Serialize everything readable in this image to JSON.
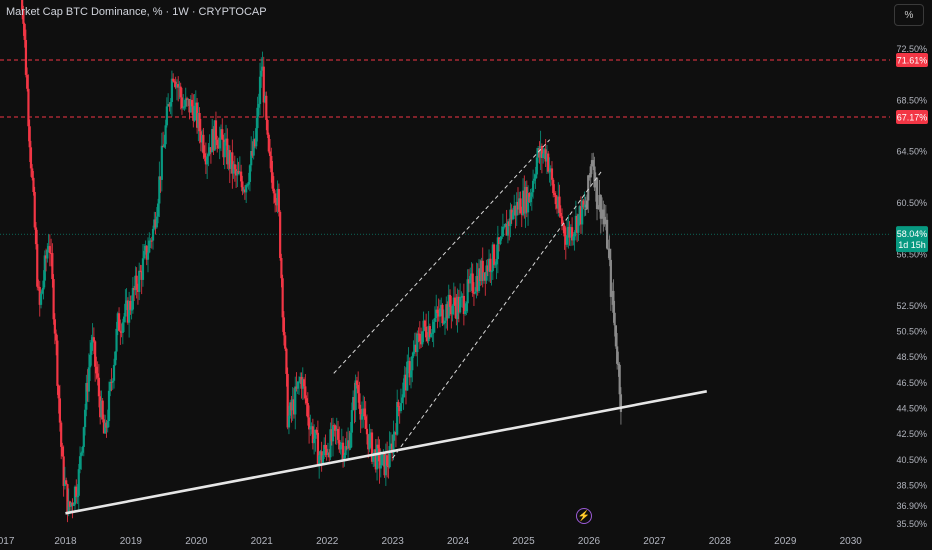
{
  "header": {
    "title": "Market Cap BTC Dominance, % · 1W · CRYPTOCAP"
  },
  "scale_button": {
    "label": "%"
  },
  "icons": {
    "alert": "lightning-bolt-icon"
  },
  "chart_data": {
    "type": "candlestick",
    "yaxis": {
      "range": [
        35.0,
        75.5
      ],
      "tick_labels": [
        "72.50%",
        "68.50%",
        "64.50%",
        "60.50%",
        "56.50%",
        "52.50%",
        "50.50%",
        "48.50%",
        "46.50%",
        "44.50%",
        "42.50%",
        "40.50%",
        "38.50%",
        "36.90%",
        "35.50%"
      ],
      "tick_values": [
        72.5,
        68.5,
        64.5,
        60.5,
        56.5,
        52.5,
        50.5,
        48.5,
        46.5,
        44.5,
        42.5,
        40.5,
        38.5,
        36.9,
        35.5
      ]
    },
    "xaxis": {
      "range": [
        2017.0,
        2030.6
      ],
      "tick_labels": [
        "2017",
        "2018",
        "2019",
        "2020",
        "2021",
        "2022",
        "2023",
        "2024",
        "2025",
        "2026",
        "2027",
        "2028",
        "2029",
        "2030"
      ],
      "tick_values": [
        2017.05,
        2018.0,
        2019.0,
        2020.0,
        2021.0,
        2022.0,
        2023.0,
        2024.0,
        2025.0,
        2026.0,
        2027.0,
        2028.0,
        2029.0,
        2030.0
      ]
    },
    "horizontal_levels": [
      {
        "label": "71.61%",
        "value": 71.61,
        "color": "#f23645",
        "style": "dashed"
      },
      {
        "label": "67.17%",
        "value": 67.17,
        "color": "#f23645",
        "style": "dashed"
      }
    ],
    "current_price": {
      "label": "58.04%",
      "value": 58.04,
      "countdown": "1d 15h",
      "color": "#089981"
    },
    "price_path": [
      [
        2017.3,
        80.0
      ],
      [
        2017.45,
        66.0
      ],
      [
        2017.6,
        52.0
      ],
      [
        2017.75,
        58.0
      ],
      [
        2017.85,
        50.0
      ],
      [
        2017.95,
        40.0
      ],
      [
        2018.05,
        36.5
      ],
      [
        2018.2,
        39.0
      ],
      [
        2018.4,
        50.0
      ],
      [
        2018.6,
        42.0
      ],
      [
        2018.8,
        51.0
      ],
      [
        2018.95,
        52.0
      ],
      [
        2019.15,
        55.0
      ],
      [
        2019.35,
        58.5
      ],
      [
        2019.5,
        65.0
      ],
      [
        2019.65,
        71.0
      ],
      [
        2019.8,
        68.0
      ],
      [
        2019.95,
        68.0
      ],
      [
        2020.15,
        64.5
      ],
      [
        2020.3,
        66.0
      ],
      [
        2020.45,
        64.5
      ],
      [
        2020.6,
        62.5
      ],
      [
        2020.75,
        62.0
      ],
      [
        2020.9,
        65.0
      ],
      [
        2021.0,
        71.5
      ],
      [
        2021.1,
        64.0
      ],
      [
        2021.25,
        60.5
      ],
      [
        2021.4,
        43.5
      ],
      [
        2021.5,
        45.0
      ],
      [
        2021.6,
        47.0
      ],
      [
        2021.75,
        43.0
      ],
      [
        2021.9,
        40.5
      ],
      [
        2022.0,
        41.5
      ],
      [
        2022.15,
        42.5
      ],
      [
        2022.3,
        41.0
      ],
      [
        2022.45,
        46.5
      ],
      [
        2022.55,
        43.5
      ],
      [
        2022.7,
        41.0
      ],
      [
        2022.85,
        40.0
      ],
      [
        2022.95,
        40.5
      ],
      [
        2023.1,
        45.0
      ],
      [
        2023.25,
        47.5
      ],
      [
        2023.45,
        50.5
      ],
      [
        2023.6,
        51.0
      ],
      [
        2023.75,
        52.0
      ],
      [
        2023.9,
        52.5
      ],
      [
        2024.05,
        52.5
      ],
      [
        2024.2,
        54.0
      ],
      [
        2024.35,
        55.0
      ],
      [
        2024.5,
        56.0
      ],
      [
        2024.65,
        57.0
      ],
      [
        2024.8,
        59.5
      ],
      [
        2024.95,
        60.5
      ],
      [
        2025.1,
        61.0
      ],
      [
        2025.2,
        64.0
      ],
      [
        2025.35,
        64.5
      ],
      [
        2025.45,
        61.5
      ],
      [
        2025.55,
        59.5
      ],
      [
        2025.65,
        58.0
      ],
      [
        2025.75,
        58.5
      ],
      [
        2025.85,
        59.5
      ],
      [
        2025.95,
        60.0
      ]
    ],
    "projection_path": [
      [
        2025.95,
        60.0
      ],
      [
        2026.0,
        62.0
      ],
      [
        2026.05,
        64.5
      ],
      [
        2026.12,
        61.0
      ],
      [
        2026.2,
        60.0
      ],
      [
        2026.28,
        57.5
      ],
      [
        2026.35,
        53.0
      ],
      [
        2026.4,
        50.5
      ],
      [
        2026.45,
        47.5
      ],
      [
        2026.5,
        44.5
      ]
    ],
    "trendlines": [
      {
        "name": "support",
        "style": "solid",
        "color": "#e6e6e6",
        "points": [
          [
            2018.0,
            36.3
          ],
          [
            2027.8,
            45.8
          ]
        ]
      },
      {
        "name": "channel-upper",
        "style": "dashed",
        "color": "#d8d8d8",
        "points": [
          [
            2022.1,
            47.2
          ],
          [
            2025.4,
            65.4
          ]
        ]
      },
      {
        "name": "channel-lower",
        "style": "dashed",
        "color": "#d8d8d8",
        "points": [
          [
            2023.0,
            40.6
          ],
          [
            2026.2,
            63.0
          ]
        ]
      }
    ]
  }
}
